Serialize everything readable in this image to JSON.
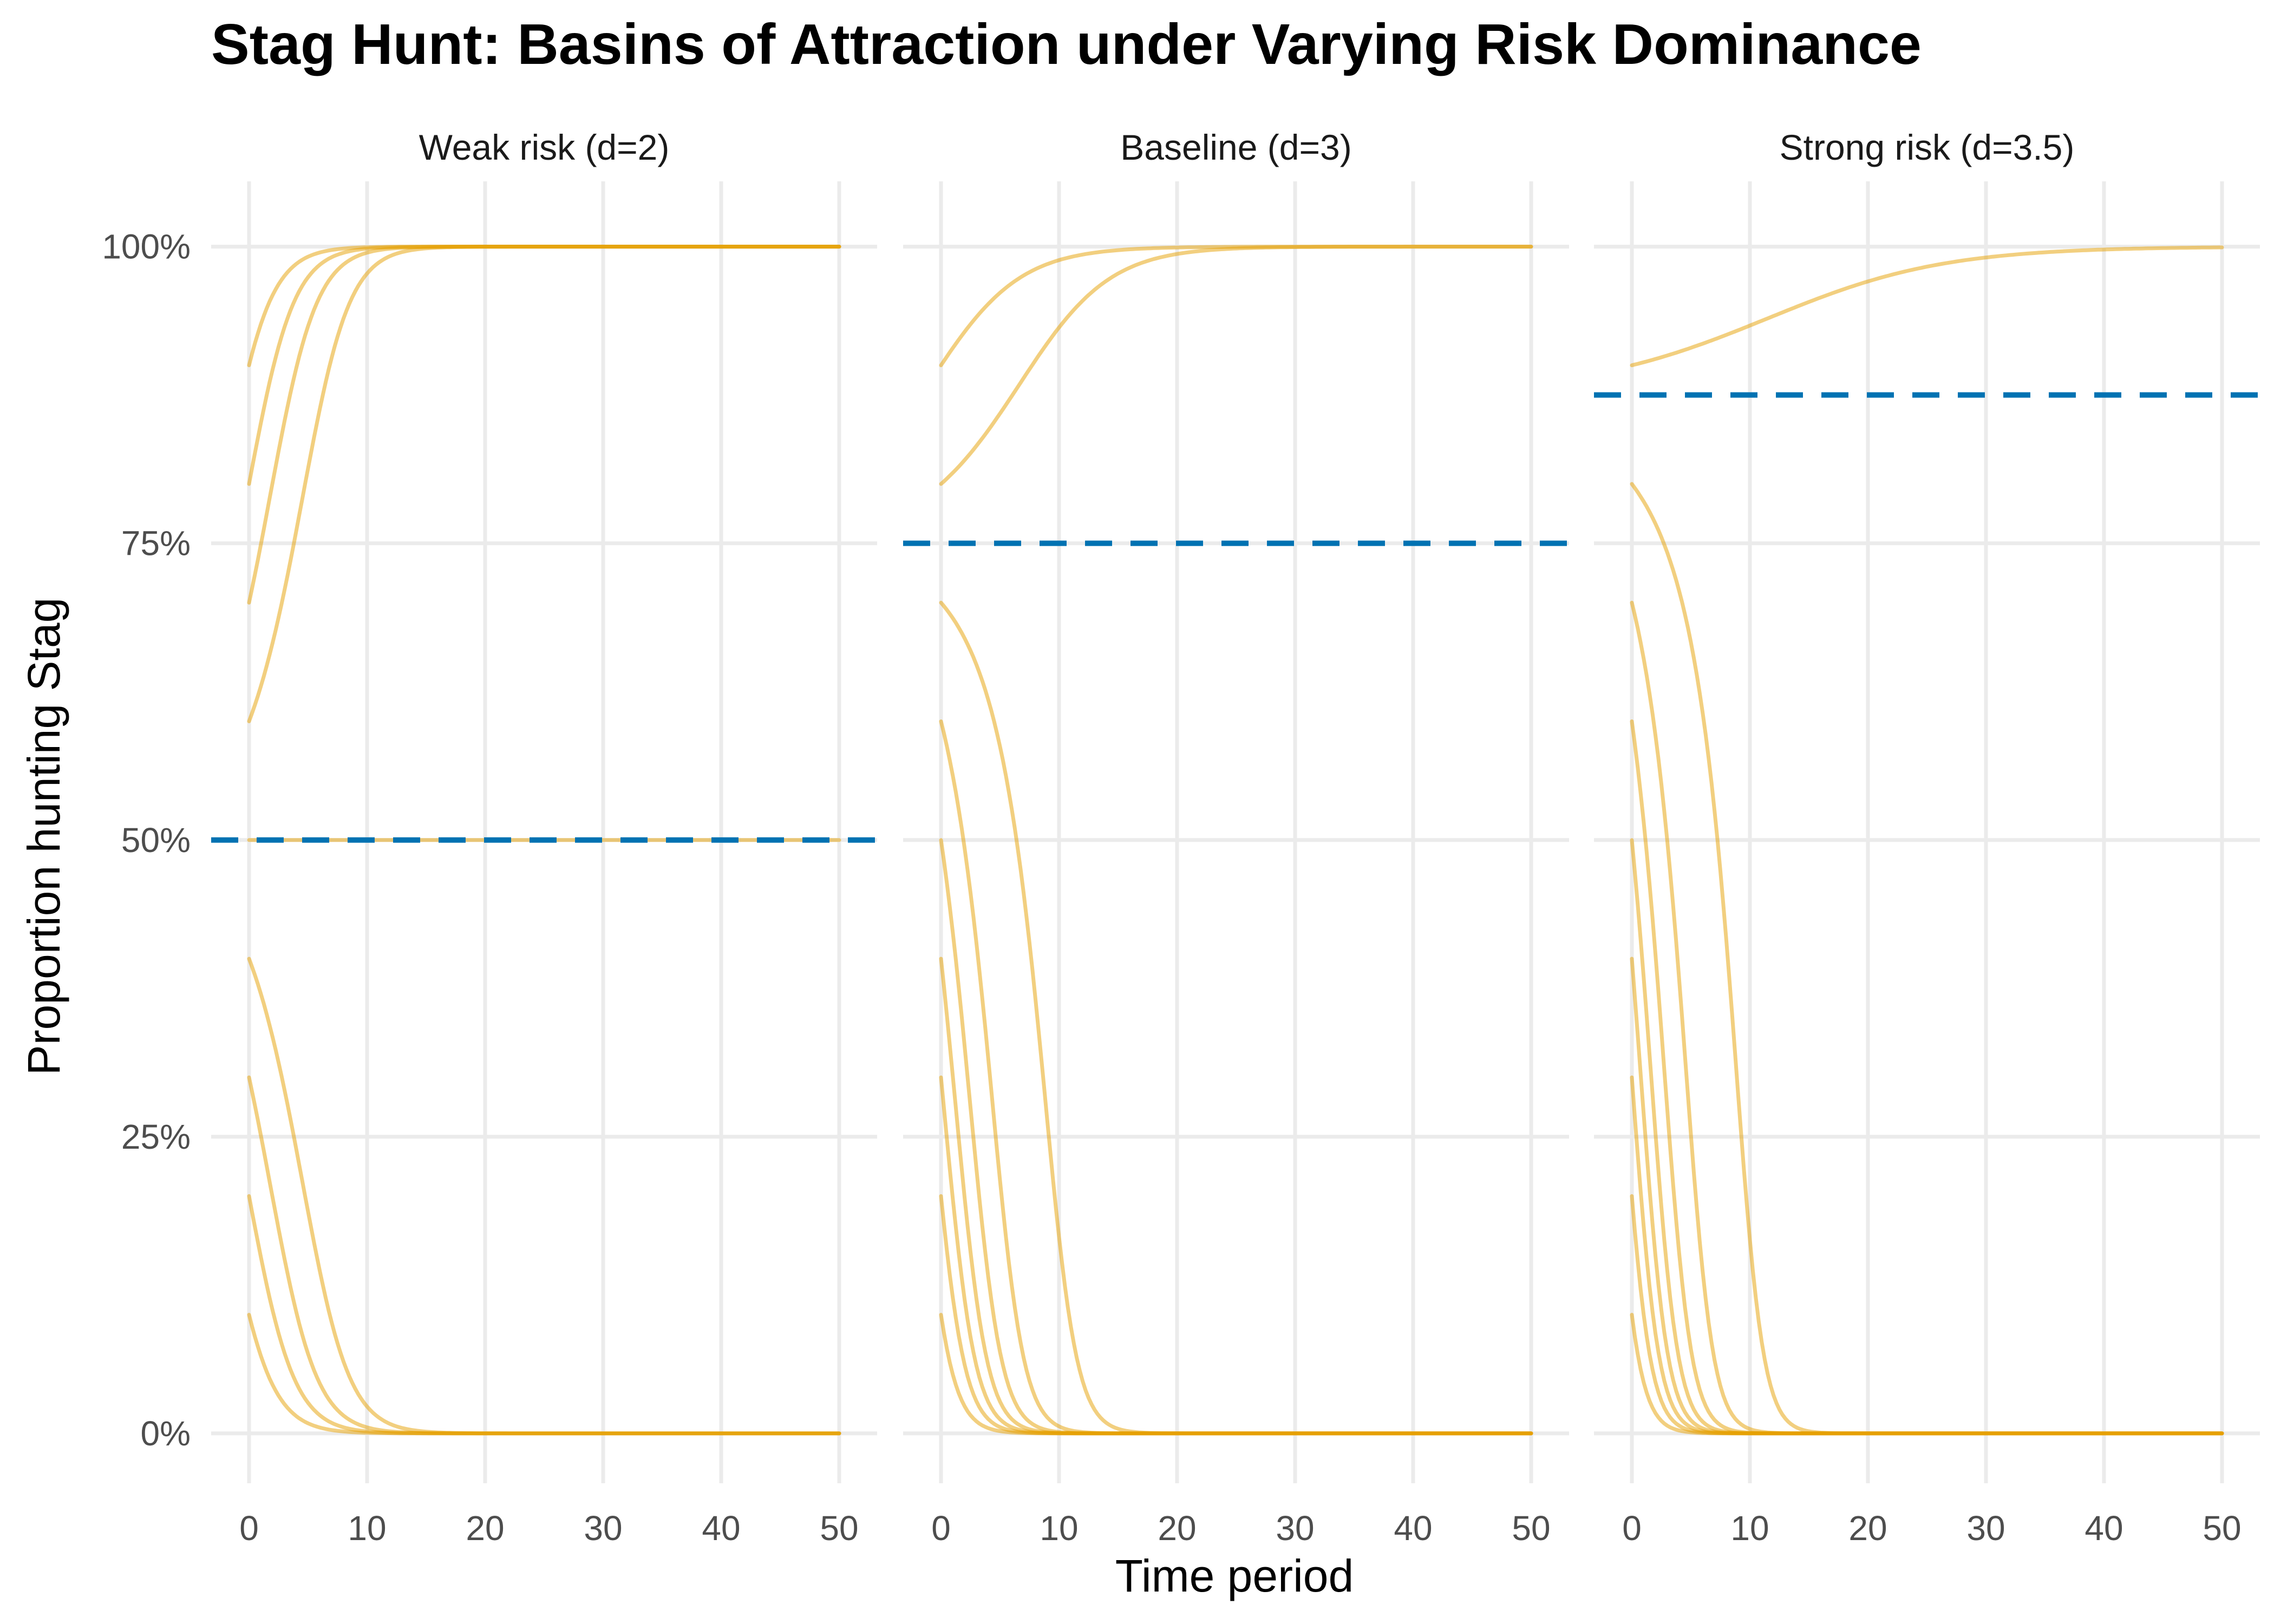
{
  "chart_data": {
    "type": "line",
    "title": "Stag Hunt: Basins of Attraction under Varying Risk Dominance",
    "xlabel": "Time period",
    "ylabel": "Proportion hunting Stag",
    "xlim": [
      0,
      50
    ],
    "ylim": [
      0,
      1
    ],
    "x_ticks": [
      "0",
      "10",
      "20",
      "30",
      "40",
      "50"
    ],
    "y_ticks": [
      "0%",
      "25%",
      "50%",
      "75%",
      "100%"
    ],
    "grid": true,
    "legend": "none",
    "colors": {
      "curve": "#E69F00",
      "threshold": "#0072B2",
      "grid": "#ebebeb"
    },
    "initial_values": [
      0.1,
      0.2,
      0.3,
      0.4,
      0.5,
      0.6,
      0.7,
      0.8,
      0.9
    ],
    "panels": [
      {
        "label": "Weak risk (d=2)",
        "threshold": 0.5,
        "series_at_t50": [
          0.0,
          0.0,
          0.0,
          0.0,
          0.5,
          1.0,
          1.0,
          1.0,
          1.0
        ]
      },
      {
        "label": "Baseline (d=3)",
        "threshold": 0.75,
        "series_at_t50": [
          0.0,
          0.0,
          0.0,
          0.0,
          0.0,
          0.0,
          0.0,
          0.99,
          1.0
        ]
      },
      {
        "label": "Strong risk (d=3.5)",
        "threshold": 0.875,
        "series_at_t50": [
          0.0,
          0.0,
          0.0,
          0.0,
          0.0,
          0.0,
          0.0,
          0.0,
          0.965
        ]
      }
    ]
  }
}
